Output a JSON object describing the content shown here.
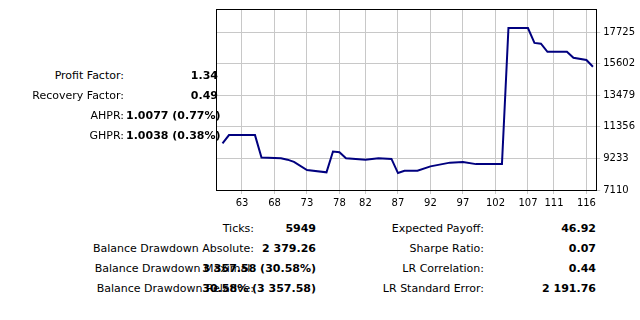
{
  "chart_data": {
    "type": "line",
    "color": "#00007f",
    "grid": true,
    "tick_labels": true,
    "xlim": [
      59,
      117.5
    ],
    "xticks": [
      63,
      68,
      73,
      78,
      82,
      87,
      92,
      97,
      102,
      107,
      111,
      116
    ],
    "ylim": [
      7110,
      19280
    ],
    "yticks": [
      7110,
      9233,
      11356,
      13479,
      15602,
      17725
    ],
    "x": [
      60,
      61,
      65,
      66,
      69,
      70,
      71,
      73,
      76,
      77,
      78,
      79,
      82,
      84,
      86,
      87,
      88,
      90,
      92,
      95,
      97,
      99,
      103,
      104,
      107,
      108,
      109,
      110,
      113,
      114,
      116,
      117
    ],
    "values": [
      10250,
      10800,
      10800,
      9300,
      9250,
      9150,
      9000,
      8450,
      8300,
      9700,
      9650,
      9250,
      9150,
      9250,
      9200,
      8250,
      8400,
      8400,
      8700,
      8950,
      9000,
      8850,
      8850,
      18000,
      18000,
      17000,
      16950,
      16400,
      16400,
      16000,
      15850,
      15400
    ]
  },
  "stats_left": [
    {
      "label": "Profit Factor:",
      "value": "1.34"
    },
    {
      "label": "Recovery Factor:",
      "value": "0.49"
    },
    {
      "label": "AHPR:",
      "value": "1.0077 (0.77%)"
    },
    {
      "label": "GHPR:",
      "value": "1.0038 (0.38%)"
    }
  ],
  "stats_bottom": {
    "left": [
      {
        "label": "Ticks:",
        "value": "5949"
      },
      {
        "label": "Balance Drawdown Absolute:",
        "value": "2 379.26"
      },
      {
        "label": "Balance Drawdown Maximal:",
        "value": "3 357.58 (30.58%)"
      },
      {
        "label": "Balance Drawdown Relative:",
        "value": "30.58% (3 357.58)"
      }
    ],
    "right": [
      {
        "label": "Expected Payoff:",
        "value": "46.92"
      },
      {
        "label": "Sharpe Ratio:",
        "value": "0.07"
      },
      {
        "label": "LR Correlation:",
        "value": "0.44"
      },
      {
        "label": "LR Standard Error:",
        "value": "2 191.76"
      }
    ]
  }
}
